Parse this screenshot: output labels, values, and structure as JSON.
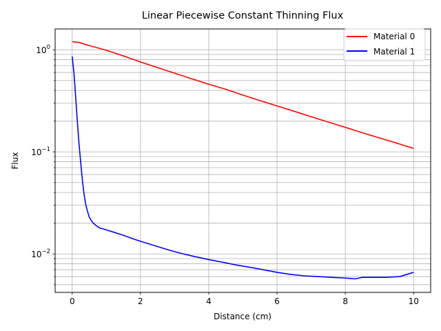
{
  "chart_data": {
    "type": "line",
    "title": "Linear Piecewise Constant Thinning Flux",
    "xlabel": "Distance (cm)",
    "ylabel": "Flux",
    "xlim": [
      -0.5,
      10.5
    ],
    "ylim": [
      0.0042,
      1.6
    ],
    "yscale": "log",
    "grid": "both-major-and-minor-y",
    "legend_loc": "upper right",
    "x_ticks": [
      0,
      2,
      4,
      6,
      8,
      10
    ],
    "x_tick_labels": [
      "0",
      "2",
      "4",
      "6",
      "8",
      "10"
    ],
    "y_ticks": [
      0.01,
      0.1,
      1
    ],
    "y_tick_labels": [
      {
        "base": "10",
        "exp": "−2"
      },
      {
        "base": "10",
        "exp": "−1"
      },
      {
        "base": "10",
        "exp": "0"
      }
    ],
    "series": [
      {
        "name": "Material 0",
        "color": "#ff0000",
        "x": [
          0,
          0.2,
          0.5,
          1,
          1.5,
          2,
          2.5,
          3,
          3.5,
          4,
          4.5,
          5,
          5.5,
          6,
          6.5,
          7,
          7.5,
          8,
          8.5,
          9,
          9.5,
          10
        ],
        "y": [
          1.2,
          1.18,
          1.1,
          0.99,
          0.87,
          0.76,
          0.67,
          0.59,
          0.52,
          0.46,
          0.41,
          0.36,
          0.318,
          0.282,
          0.25,
          0.221,
          0.196,
          0.174,
          0.154,
          0.137,
          0.122,
          0.108
        ]
      },
      {
        "name": "Material 1",
        "color": "#0000ff",
        "x": [
          0,
          0.05,
          0.1,
          0.15,
          0.2,
          0.25,
          0.3,
          0.35,
          0.4,
          0.45,
          0.5,
          0.55,
          0.6,
          0.7,
          0.8,
          0.9,
          1.0,
          1.2,
          1.4,
          1.6,
          1.8,
          2.0,
          2.4,
          2.8,
          3.2,
          3.6,
          4.0,
          4.4,
          4.8,
          5.2,
          5.6,
          6.0,
          6.4,
          6.8,
          7.2,
          7.6,
          8.0,
          8.3,
          8.5,
          8.8,
          9.2,
          9.6,
          10.0
        ],
        "y": [
          0.86,
          0.6,
          0.35,
          0.2,
          0.12,
          0.078,
          0.052,
          0.038,
          0.03,
          0.026,
          0.023,
          0.0215,
          0.0203,
          0.019,
          0.018,
          0.0176,
          0.0172,
          0.0164,
          0.0156,
          0.0148,
          0.014,
          0.0133,
          0.0121,
          0.011,
          0.0101,
          0.0094,
          0.0088,
          0.0083,
          0.0078,
          0.0074,
          0.007,
          0.0066,
          0.0063,
          0.0061,
          0.006,
          0.0059,
          0.0058,
          0.0057,
          0.0059,
          0.0059,
          0.0059,
          0.006,
          0.0066
        ]
      }
    ]
  }
}
